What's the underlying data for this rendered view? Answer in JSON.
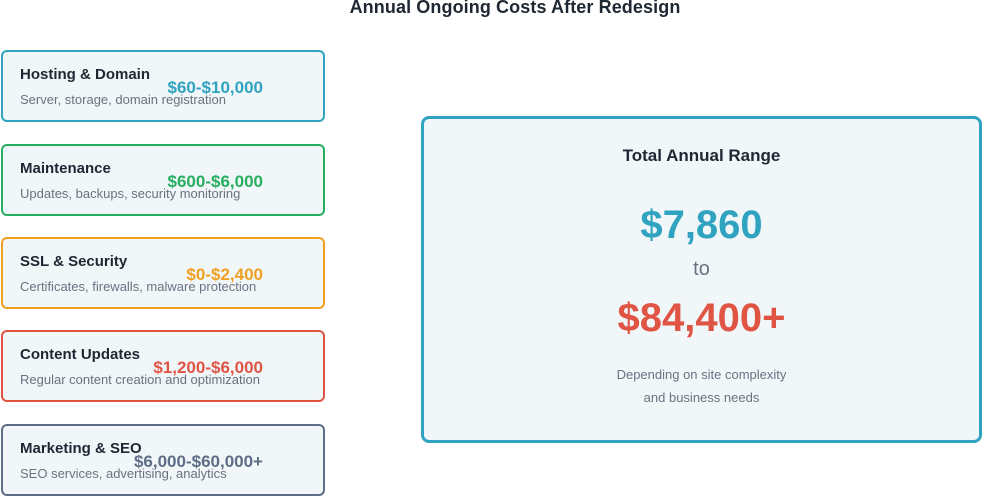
{
  "title": "Annual Ongoing Costs After Redesign",
  "categories": [
    {
      "name": "Hosting & Domain",
      "description": "Server, storage, domain registration",
      "amount": "$60-$10,000",
      "color": "#2fa3bf"
    },
    {
      "name": "Maintenance",
      "description": "Updates, backups, security monitoring",
      "amount": "$600-$6,000",
      "color": "#27ae60"
    },
    {
      "name": "SSL & Security",
      "description": "Certificates, firewalls, malware protection",
      "amount": "$0-$2,400",
      "color": "#f0a020"
    },
    {
      "name": "Content Updates",
      "description": "Regular content creation and optimization",
      "amount": "$1,200-$6,000",
      "color": "#e05444"
    },
    {
      "name": "Marketing & SEO",
      "description": "SEO services, advertising, analytics",
      "amount": "$6,000-$60,000+",
      "color": "#5d6d86"
    }
  ],
  "total": {
    "title": "Total Annual Range",
    "low": "$7,860",
    "connector": "to",
    "high": "$84,400+",
    "note_line1": "Depending on site complexity",
    "note_line2": "and business needs",
    "low_color": "#2fa3bf",
    "high_color": "#e05444",
    "border_color": "#2fa3bf"
  }
}
